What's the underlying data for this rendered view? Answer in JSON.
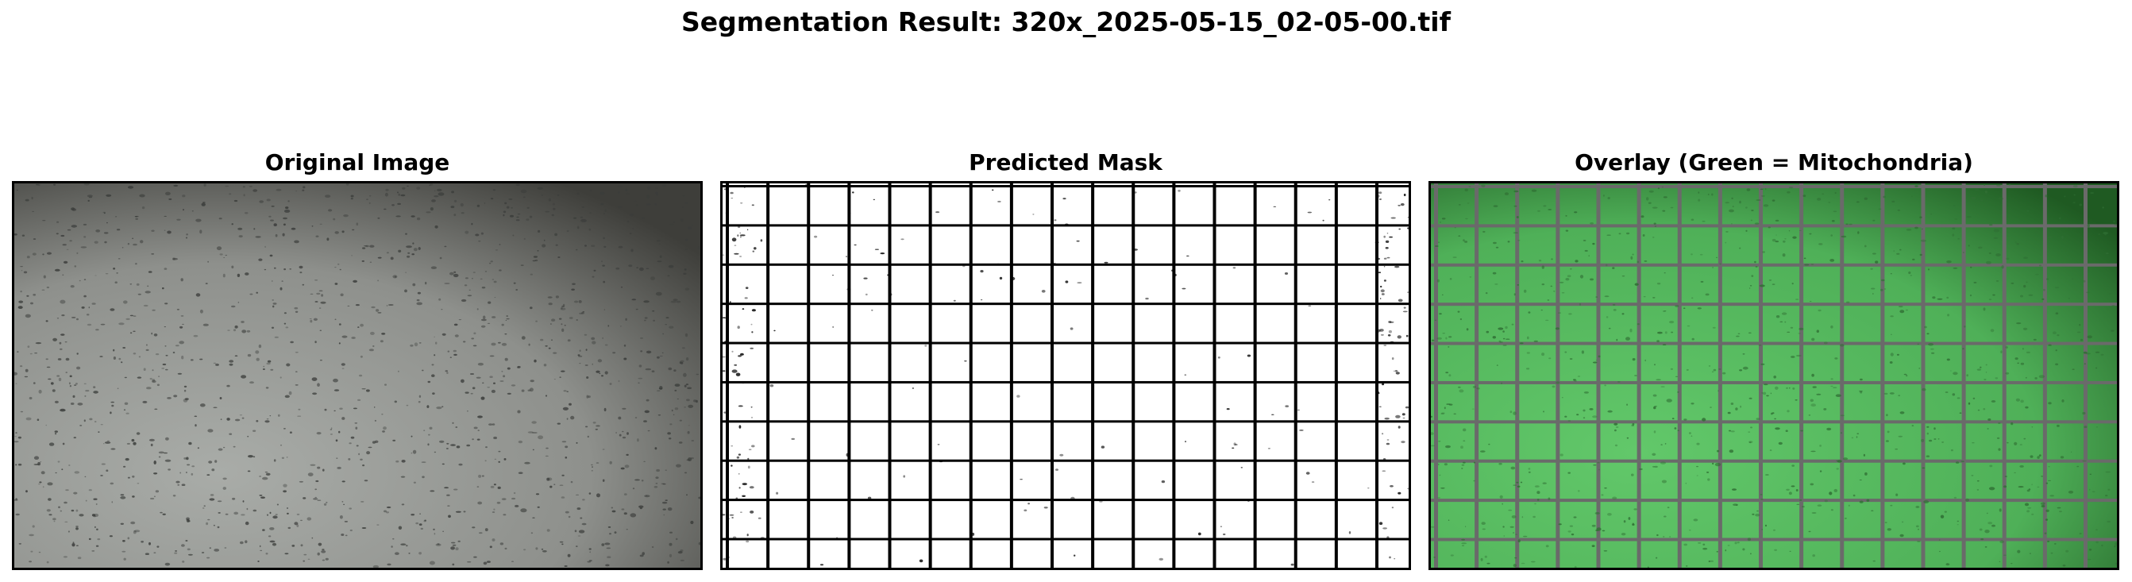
{
  "figure": {
    "title": "Segmentation Result: 320x_2025-05-15_02-05-00.tif"
  },
  "panels": [
    {
      "id": "original",
      "title": "Original Image"
    },
    {
      "id": "mask",
      "title": "Predicted Mask"
    },
    {
      "id": "overlay",
      "title": "Overlay (Green = Mitochondria)"
    }
  ],
  "colors": {
    "original_base": "#a4a7a3",
    "original_dark_corner": "#4a4a46",
    "mask_background": "#ffffff",
    "mask_lines": "#000000",
    "overlay_green": "#5cc465",
    "overlay_lines": "#6a6a6a"
  },
  "grid": {
    "columns": 17,
    "rows": 10
  }
}
